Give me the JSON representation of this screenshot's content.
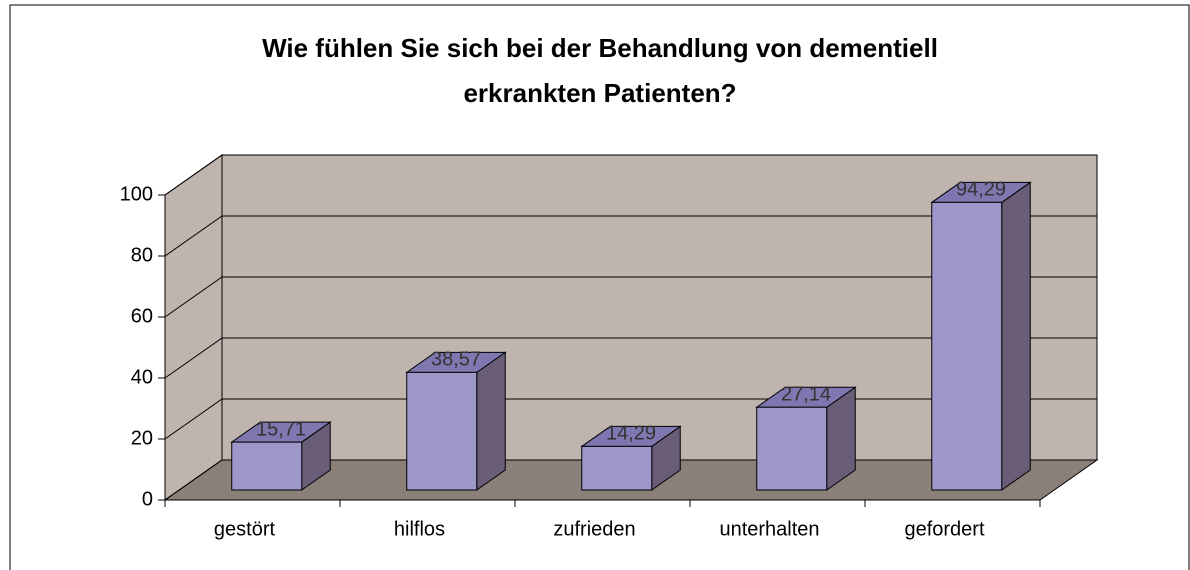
{
  "chart_data": {
    "type": "bar3d",
    "title": [
      "Wie fühlen Sie sich bei der Behandlung von dementiell",
      "erkrankten Patienten?"
    ],
    "categories": [
      "gestört",
      "hilflos",
      "zufrieden",
      "unterhalten",
      "gefordert"
    ],
    "values": [
      15.71,
      38.57,
      14.29,
      27.14,
      94.29
    ],
    "value_labels": [
      "15,71",
      "38,57",
      "14,29",
      "27,14",
      "94,29"
    ],
    "color": "#9d98c9",
    "ylim": [
      0,
      100
    ],
    "yticks": [
      0,
      20,
      40,
      60,
      80,
      100
    ],
    "grid": true
  }
}
